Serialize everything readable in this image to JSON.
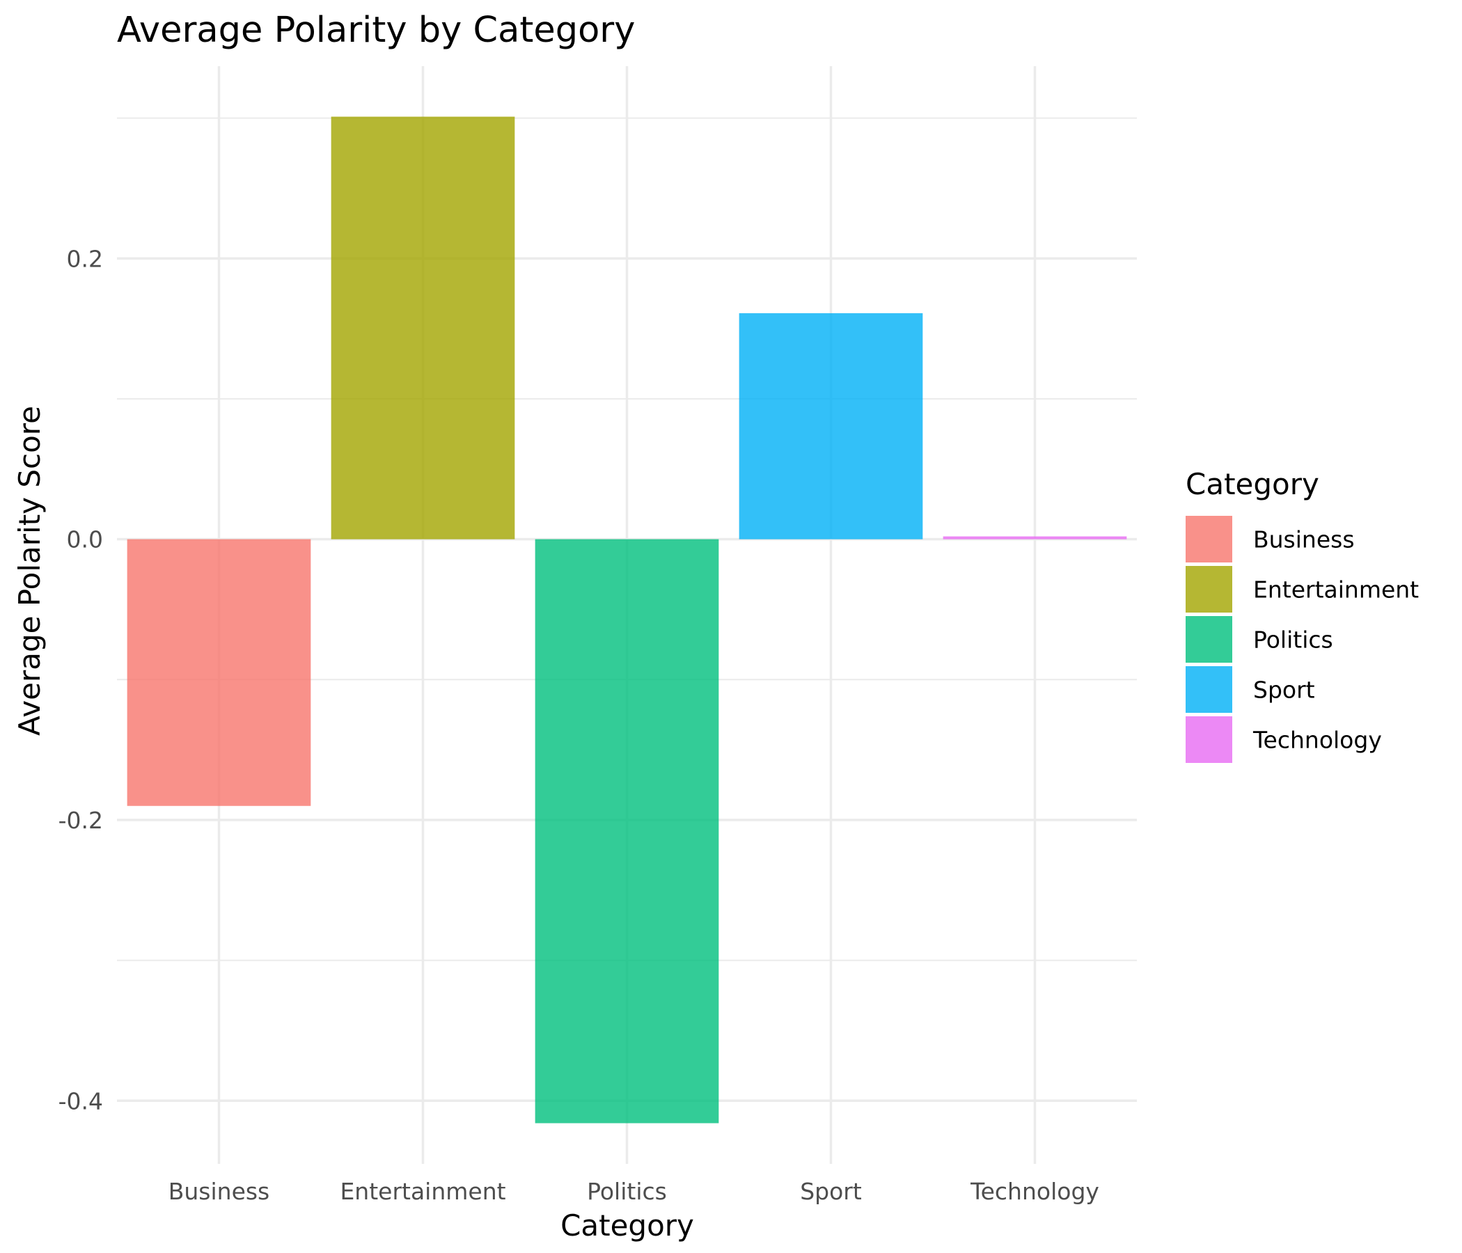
{
  "chart_data": {
    "type": "bar",
    "title": "Average Polarity by Category",
    "xlabel": "Category",
    "ylabel": "Average Polarity Score",
    "categories": [
      "Business",
      "Entertainment",
      "Politics",
      "Sport",
      "Technology"
    ],
    "values": [
      -0.19,
      0.301,
      -0.416,
      0.161,
      0.002
    ],
    "colors": [
      "#F8766D",
      "#A3A500",
      "#00BF7D",
      "#00B0F6",
      "#E76BF3"
    ],
    "ylim": [
      -0.445,
      0.337
    ],
    "y_ticks": [
      {
        "value": 0.2,
        "label": "0.2"
      },
      {
        "value": 0.0,
        "label": "0.0"
      },
      {
        "value": -0.2,
        "label": "-0.2"
      },
      {
        "value": -0.4,
        "label": "-0.4"
      }
    ],
    "y_minor_ticks": [
      0.3,
      0.1,
      -0.1,
      -0.3
    ],
    "grid": true,
    "legend": {
      "title": "Category",
      "position": "right",
      "entries": [
        "Business",
        "Entertainment",
        "Politics",
        "Sport",
        "Technology"
      ]
    }
  }
}
